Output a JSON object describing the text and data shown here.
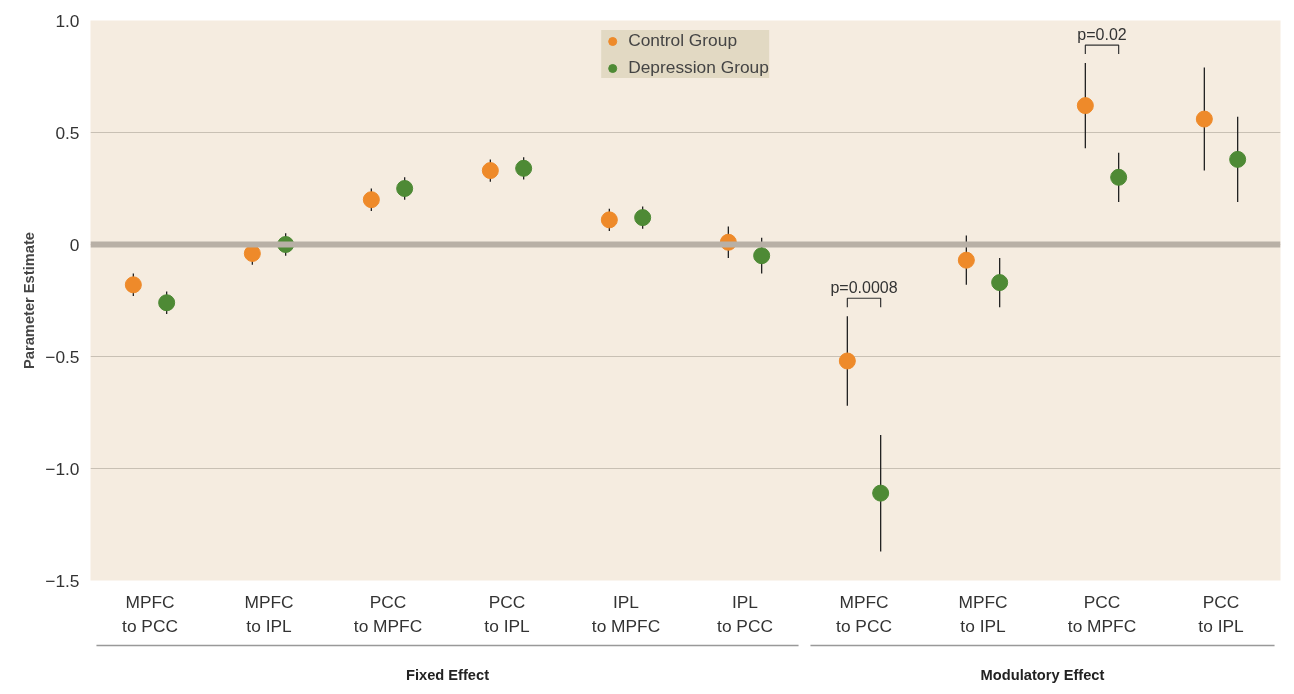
{
  "chart_data": {
    "type": "scatter",
    "ylabel": "Parameter Estimate",
    "categories": [
      "MPFC\nto PCC",
      "MPFC\nto IPL",
      "PCC\nto MPFC",
      "PCC\nto IPL",
      "IPL\nto MPFC",
      "IPL\nto PCC",
      "MPFC\nto PCC",
      "MPFC\nto IPL",
      "PCC\nto MPFC",
      "PCC\nto IPL"
    ],
    "series": [
      {
        "name": "Control Group",
        "color": "#ee8a2a",
        "values": [
          -0.18,
          -0.04,
          0.2,
          0.33,
          0.11,
          0.01,
          -0.52,
          -0.07,
          0.62,
          0.56
        ],
        "errors": [
          0.05,
          0.05,
          0.05,
          0.05,
          0.05,
          0.07,
          0.2,
          0.11,
          0.19,
          0.23
        ]
      },
      {
        "name": "Depression Group",
        "color": "#4e8a35",
        "values": [
          -0.26,
          0.0,
          0.25,
          0.34,
          0.12,
          -0.05,
          -1.11,
          -0.17,
          0.3,
          0.38
        ],
        "errors": [
          0.05,
          0.05,
          0.05,
          0.05,
          0.05,
          0.08,
          0.26,
          0.11,
          0.11,
          0.19
        ]
      }
    ],
    "ylim": [
      -1.5,
      1.0
    ],
    "yticks": [
      {
        "value": 1.0,
        "label": "1.0"
      },
      {
        "value": 0.5,
        "label": "0.5"
      },
      0,
      {
        "value": -0.5,
        "label": "−0.5"
      },
      {
        "value": -1.0,
        "label": "−1.0"
      },
      {
        "value": -1.5,
        "label": "−1.5"
      }
    ],
    "ref_lines": [
      {
        "axis": "y",
        "value": 0,
        "color": "#b8b0a6"
      }
    ],
    "grid": "y",
    "legend": "top",
    "marker": "circle",
    "annotations": [
      "p=0.0008",
      "p=0.02",
      "Fixed Effect",
      "Modulatory Effect"
    ]
  }
}
